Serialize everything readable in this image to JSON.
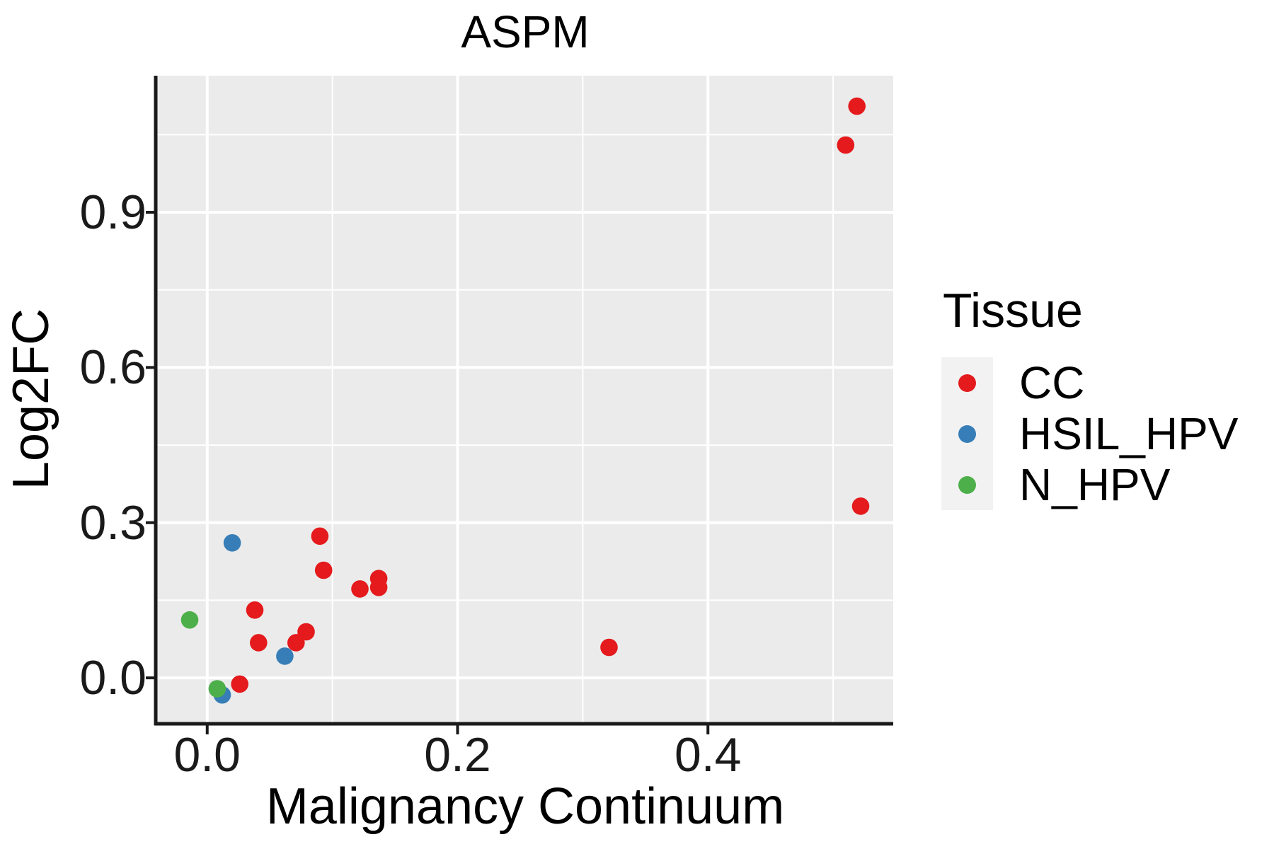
{
  "title": "ASPM",
  "chart_data": {
    "type": "scatter",
    "title": "ASPM",
    "xlabel": "Malignancy Continuum",
    "ylabel": "Log2FC",
    "xlim": [
      -0.04,
      0.548
    ],
    "ylim": [
      -0.086,
      1.164
    ],
    "x_ticks": {
      "values": [
        0.0,
        0.2,
        0.4
      ],
      "labels": [
        "0.0",
        "0.2",
        "0.4"
      ],
      "minor": [
        0.1,
        0.3,
        0.5
      ]
    },
    "y_ticks": {
      "values": [
        0.0,
        0.3,
        0.6,
        0.9
      ],
      "labels": [
        "0.0",
        "0.3",
        "0.6",
        "0.9"
      ],
      "minor": [
        0.15,
        0.45,
        0.75,
        1.05
      ]
    },
    "grid": "white major and minor gridlines on gray panel",
    "legend_position": "right",
    "series": [
      {
        "name": "CC",
        "color": "#E41A1C",
        "points": [
          [
            0.519,
            1.105
          ],
          [
            0.51,
            1.03
          ],
          [
            0.522,
            0.332
          ],
          [
            0.321,
            0.059
          ],
          [
            0.09,
            0.274
          ],
          [
            0.093,
            0.208
          ],
          [
            0.122,
            0.172
          ],
          [
            0.137,
            0.192
          ],
          [
            0.137,
            0.175
          ],
          [
            0.038,
            0.131
          ],
          [
            0.041,
            0.068
          ],
          [
            0.079,
            0.089
          ],
          [
            0.071,
            0.068
          ],
          [
            0.026,
            -0.012
          ]
        ]
      },
      {
        "name": "HSIL_HPV",
        "color": "#377EB8",
        "points": [
          [
            0.02,
            0.261
          ],
          [
            0.062,
            0.042
          ],
          [
            0.012,
            -0.033
          ]
        ]
      },
      {
        "name": "N_HPV",
        "color": "#4DAF4A",
        "points": [
          [
            -0.014,
            0.112
          ],
          [
            0.008,
            -0.021
          ]
        ]
      }
    ]
  },
  "legend": {
    "title": "Tissue",
    "items": [
      {
        "label": "CC",
        "color": "#E41A1C"
      },
      {
        "label": "HSIL_HPV",
        "color": "#377EB8"
      },
      {
        "label": "N_HPV",
        "color": "#4DAF4A"
      }
    ]
  },
  "colors": {
    "panel_bg": "#EBEBEB",
    "grid": "#FFFFFF",
    "legend_key_bg": "#F2F2F2",
    "axis_line": "#1a1a1a",
    "tick_text": "#1a1a1a",
    "title_text": "#000000"
  }
}
